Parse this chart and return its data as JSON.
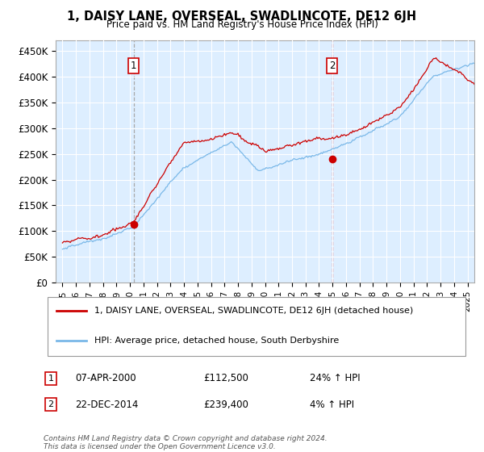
{
  "title": "1, DAISY LANE, OVERSEAL, SWADLINCOTE, DE12 6JH",
  "subtitle": "Price paid vs. HM Land Registry's House Price Index (HPI)",
  "ylim": [
    0,
    470000
  ],
  "yticks": [
    0,
    50000,
    100000,
    150000,
    200000,
    250000,
    300000,
    350000,
    400000,
    450000
  ],
  "ytick_labels": [
    "£0",
    "£50K",
    "£100K",
    "£150K",
    "£200K",
    "£250K",
    "£300K",
    "£350K",
    "£400K",
    "£450K"
  ],
  "hpi_color": "#7ab8e8",
  "price_color": "#cc0000",
  "bg_color": "#ddeeff",
  "grid_color": "#ffffff",
  "legend_line1": "1, DAISY LANE, OVERSEAL, SWADLINCOTE, DE12 6JH (detached house)",
  "legend_line2": "HPI: Average price, detached house, South Derbyshire",
  "annotation1_label": "1",
  "annotation1_date": "07-APR-2000",
  "annotation1_price": "£112,500",
  "annotation1_hpi": "24% ↑ HPI",
  "annotation2_label": "2",
  "annotation2_date": "22-DEC-2014",
  "annotation2_price": "£239,400",
  "annotation2_hpi": "4% ↑ HPI",
  "footnote": "Contains HM Land Registry data © Crown copyright and database right 2024.\nThis data is licensed under the Open Government Licence v3.0.",
  "sale1_year": 2000.27,
  "sale1_price": 112500,
  "sale2_year": 2014.97,
  "sale2_price": 239400,
  "vline1_year": 2000.27,
  "vline2_year": 2014.97,
  "xstart": 1995,
  "xend": 2025
}
